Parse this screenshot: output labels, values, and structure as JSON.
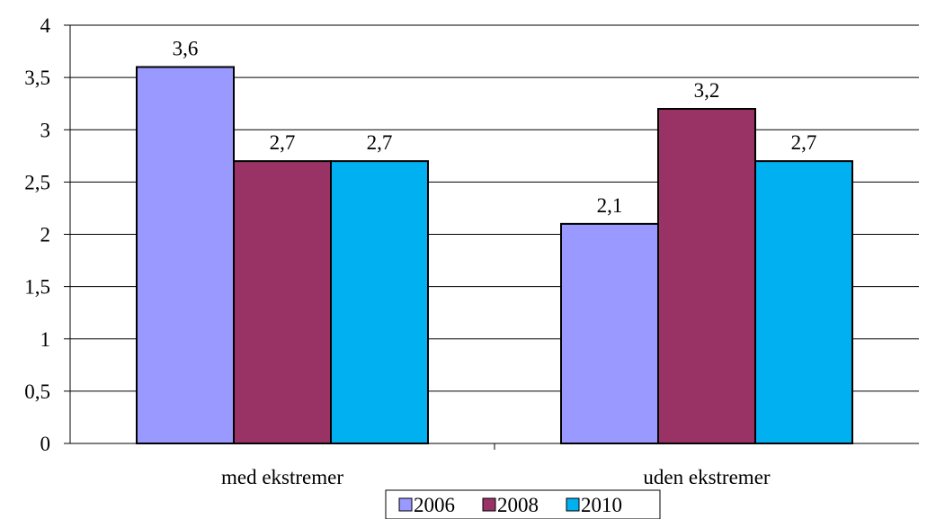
{
  "chart_data": {
    "type": "bar",
    "categories": [
      "med ekstremer",
      "uden ekstremer"
    ],
    "series": [
      {
        "name": "2006",
        "values": [
          3.6,
          2.1
        ],
        "color": "#9999FF",
        "labels": [
          "3,6",
          "2,1"
        ]
      },
      {
        "name": "2008",
        "values": [
          2.7,
          3.2
        ],
        "color": "#993366",
        "labels": [
          "2,7",
          "3,2"
        ]
      },
      {
        "name": "2010",
        "values": [
          2.7,
          2.7
        ],
        "color": "#00B0F0",
        "labels": [
          "2,7",
          "2,7"
        ]
      }
    ],
    "ylim": [
      0,
      4
    ],
    "yticks": [
      0,
      0.5,
      1,
      1.5,
      2,
      2.5,
      3,
      3.5,
      4
    ],
    "ytick_labels": [
      "0",
      "0,5",
      "1",
      "1,5",
      "2",
      "2,5",
      "3",
      "3,5",
      "4"
    ],
    "grid": true,
    "legend_position": "bottom",
    "title": "",
    "xlabel": "",
    "ylabel": ""
  }
}
